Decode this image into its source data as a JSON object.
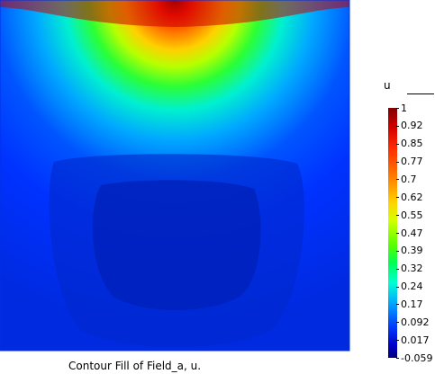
{
  "figure": {
    "caption": "Contour Fill of Field_a, u."
  },
  "legend": {
    "title": "u",
    "ticks": [
      "1",
      "0.92",
      "0.85",
      "0.77",
      "0.7",
      "0.62",
      "0.55",
      "0.47",
      "0.39",
      "0.32",
      "0.24",
      "0.17",
      "0.092",
      "0.017",
      "-0.059"
    ]
  },
  "colors": {
    "max": "#800000",
    "mid": "#55ff00",
    "min": "#00007a"
  }
}
